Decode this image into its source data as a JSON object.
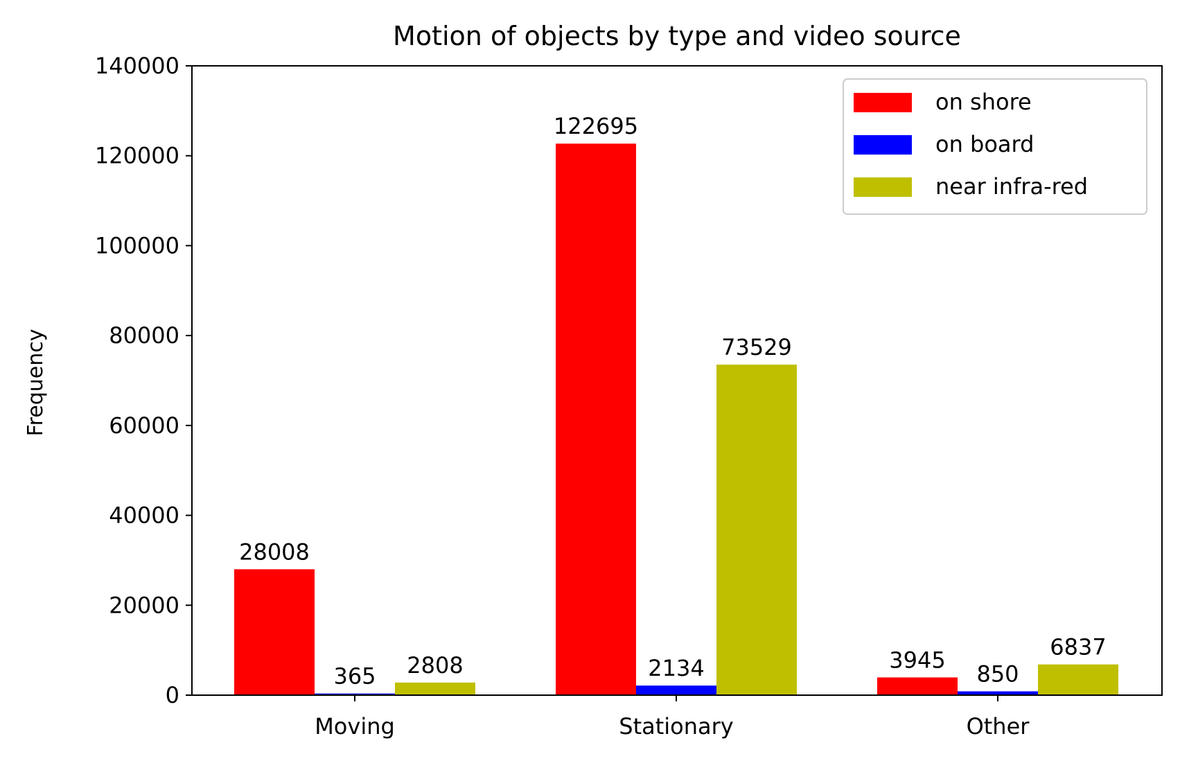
{
  "chart_data": {
    "type": "bar",
    "title": "Motion of objects by type and video source",
    "xlabel": "",
    "ylabel": "Frequency",
    "categories": [
      "Moving",
      "Stationary",
      "Other"
    ],
    "series": [
      {
        "name": "on shore",
        "color": "#ff0000",
        "values": [
          28008,
          122695,
          3945
        ]
      },
      {
        "name": "on board",
        "color": "#0000ff",
        "values": [
          365,
          2134,
          850
        ]
      },
      {
        "name": "near infra-red",
        "color": "#bfbf00",
        "values": [
          2808,
          73529,
          6837
        ]
      }
    ],
    "ylim": [
      0,
      140000
    ],
    "yticks": [
      "0",
      "20000",
      "40000",
      "60000",
      "80000",
      "100000",
      "120000",
      "140000"
    ],
    "grid": false,
    "legend": "top-right"
  }
}
